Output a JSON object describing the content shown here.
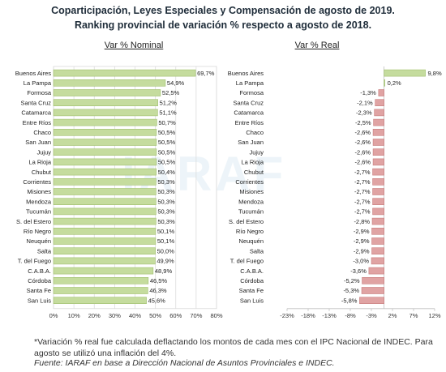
{
  "title_line1": "Coparticipación, Leyes Especiales y Compensación de agosto de 2019.",
  "title_line2": "Ranking provincial de variación % respecto a agosto de 2018.",
  "chart_data": [
    {
      "type": "bar",
      "orientation": "horizontal",
      "subtitle": "Var % Nominal",
      "categories": [
        "Buenos Aires",
        "La Pampa",
        "Formosa",
        "Santa Cruz",
        "Catamarca",
        "Entre Ríos",
        "Chaco",
        "San Juan",
        "Jujuy",
        "La Rioja",
        "Chubut",
        "Corrientes",
        "Misiones",
        "Mendoza",
        "Tucumán",
        "S. del Estero",
        "Río Negro",
        "Neuquén",
        "Salta",
        "T. del Fuego",
        "C.A.B.A.",
        "Córdoba",
        "Santa Fe",
        "San Luis"
      ],
      "values": [
        69.7,
        54.9,
        52.5,
        51.2,
        51.1,
        50.7,
        50.5,
        50.5,
        50.5,
        50.5,
        50.4,
        50.3,
        50.3,
        50.3,
        50.3,
        50.3,
        50.1,
        50.1,
        50.0,
        49.9,
        48.9,
        46.5,
        46.3,
        45.6
      ],
      "labels": [
        "69,7%",
        "54,9%",
        "52,5%",
        "51,2%",
        "51,1%",
        "50,7%",
        "50,5%",
        "50,5%",
        "50,5%",
        "50,5%",
        "50,4%",
        "50,3%",
        "50,3%",
        "50,3%",
        "50,3%",
        "50,3%",
        "50,1%",
        "50,1%",
        "50,0%",
        "49,9%",
        "48,9%",
        "46,5%",
        "46,3%",
        "45,6%"
      ],
      "xlim": [
        0,
        80
      ],
      "ticks": [
        0,
        10,
        20,
        30,
        40,
        50,
        60,
        70,
        80
      ],
      "tick_labels": [
        "0%",
        "10%",
        "20%",
        "30%",
        "40%",
        "50%",
        "60%",
        "70%",
        "80%"
      ],
      "grid": true,
      "color": "#c5dc9e"
    },
    {
      "type": "bar",
      "orientation": "horizontal",
      "subtitle": "Var % Real",
      "categories": [
        "Buenos Aires",
        "La Pampa",
        "Formosa",
        "Santa Cruz",
        "Catamarca",
        "Entre Ríos",
        "Chaco",
        "San Juan",
        "Jujuy",
        "La Rioja",
        "Chubut",
        "Corrientes",
        "Misiones",
        "Mendoza",
        "Tucumán",
        "S. del Estero",
        "Río Negro",
        "Neuquén",
        "Salta",
        "T. del Fuego",
        "C.A.B.A.",
        "Córdoba",
        "Santa Fe",
        "San Luis"
      ],
      "values": [
        9.8,
        0.2,
        -1.3,
        -2.1,
        -2.3,
        -2.5,
        -2.6,
        -2.6,
        -2.6,
        -2.6,
        -2.7,
        -2.7,
        -2.7,
        -2.7,
        -2.7,
        -2.8,
        -2.9,
        -2.9,
        -2.9,
        -3.0,
        -3.6,
        -5.2,
        -5.3,
        -5.8
      ],
      "labels": [
        "9,8%",
        "0,2%",
        "-1,3%",
        "-2,1%",
        "-2,3%",
        "-2,5%",
        "-2,6%",
        "-2,6%",
        "-2,6%",
        "-2,6%",
        "-2,7%",
        "-2,7%",
        "-2,7%",
        "-2,7%",
        "-2,7%",
        "-2,8%",
        "-2,9%",
        "-2,9%",
        "-2,9%",
        "-3,0%",
        "-3,6%",
        "-5,2%",
        "-5,3%",
        "-5,8%"
      ],
      "xlim": [
        -23,
        12
      ],
      "ticks": [
        -23,
        -18,
        -13,
        -8,
        -3,
        2,
        7,
        12
      ],
      "tick_labels": [
        "-23%",
        "-18%",
        "-13%",
        "-8%",
        "-3%",
        "2%",
        "7%",
        "12%"
      ],
      "grid": false,
      "color_positive": "#c5dc9e",
      "color_negative": "#e0a3a3"
    }
  ],
  "footnote": "*Variación % real fue calculada deflactando los montos de cada mes con el IPC Nacional de INDEC. Para agosto se utilizó una inflación del 4%.",
  "source": "Fuente: IARAF en base a Dirección Nacional de Asuntos Provinciales e INDEC.",
  "watermark_text": "IARAF"
}
